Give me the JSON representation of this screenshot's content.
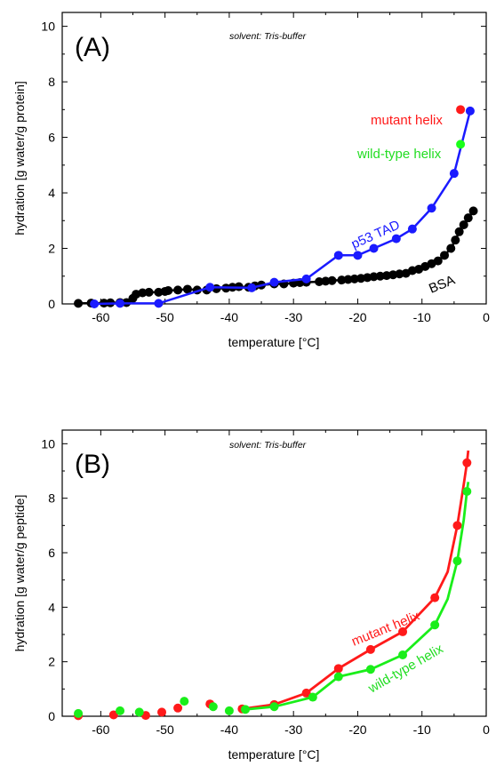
{
  "chart_data": [
    {
      "type": "line",
      "panel_label": "(A)",
      "annotation": "solvent: Tris-buffer",
      "xlabel": "temperature [°C]",
      "ylabel": "hydration [g water/g protein]",
      "xlim": [
        -66,
        0
      ],
      "ylim": [
        0,
        10.5
      ],
      "xticks": [
        -60,
        -50,
        -40,
        -30,
        -20,
        -10,
        0
      ],
      "yticks": [
        0,
        2,
        4,
        6,
        8,
        10
      ],
      "grid": false,
      "series": [
        {
          "name": "BSA",
          "color": "#000000",
          "line": true,
          "points": [
            [
              -63.5,
              0.02
            ],
            [
              -61.5,
              0.03
            ],
            [
              -59.5,
              0.03
            ],
            [
              -58.5,
              0.04
            ],
            [
              -57,
              0.05
            ],
            [
              -56,
              0.05
            ],
            [
              -55,
              0.2
            ],
            [
              -54.5,
              0.35
            ],
            [
              -53.5,
              0.4
            ],
            [
              -52.5,
              0.42
            ],
            [
              -51,
              0.42
            ],
            [
              -50,
              0.45
            ],
            [
              -49.5,
              0.48
            ],
            [
              -48,
              0.5
            ],
            [
              -46.5,
              0.53
            ],
            [
              -45,
              0.5
            ],
            [
              -43.5,
              0.5
            ],
            [
              -42,
              0.55
            ],
            [
              -40.5,
              0.57
            ],
            [
              -39.5,
              0.6
            ],
            [
              -38.5,
              0.62
            ],
            [
              -37,
              0.6
            ],
            [
              -36,
              0.65
            ],
            [
              -35,
              0.68
            ],
            [
              -33,
              0.72
            ],
            [
              -31.5,
              0.72
            ],
            [
              -30,
              0.75
            ],
            [
              -29,
              0.77
            ],
            [
              -28,
              0.78
            ],
            [
              -26,
              0.8
            ],
            [
              -25,
              0.82
            ],
            [
              -24,
              0.84
            ],
            [
              -22.5,
              0.86
            ],
            [
              -21.5,
              0.88
            ],
            [
              -20.5,
              0.9
            ],
            [
              -19.5,
              0.92
            ],
            [
              -18.5,
              0.95
            ],
            [
              -17.5,
              0.98
            ],
            [
              -16.5,
              1.0
            ],
            [
              -15.5,
              1.02
            ],
            [
              -14.5,
              1.05
            ],
            [
              -13.5,
              1.08
            ],
            [
              -12.5,
              1.1
            ],
            [
              -11.5,
              1.2
            ],
            [
              -10.5,
              1.25
            ],
            [
              -9.5,
              1.35
            ],
            [
              -8.5,
              1.45
            ],
            [
              -7.5,
              1.55
            ],
            [
              -6.5,
              1.75
            ],
            [
              -5.5,
              2.0
            ],
            [
              -4.8,
              2.3
            ],
            [
              -4.2,
              2.6
            ],
            [
              -3.5,
              2.85
            ],
            [
              -2.8,
              3.1
            ],
            [
              -2.0,
              3.35
            ]
          ]
        },
        {
          "name": "p53 TAD",
          "color": "#1a1aff",
          "line": true,
          "points": [
            [
              -61,
              0.0
            ],
            [
              -57,
              0.02
            ],
            [
              -51,
              0.02
            ],
            [
              -43,
              0.6
            ],
            [
              -36.5,
              0.58
            ],
            [
              -33,
              0.78
            ],
            [
              -28,
              0.9
            ],
            [
              -23,
              1.75
            ],
            [
              -20,
              1.75
            ],
            [
              -17.5,
              2.0
            ],
            [
              -14,
              2.35
            ],
            [
              -11.5,
              2.7
            ],
            [
              -8.5,
              3.45
            ],
            [
              -5,
              4.7
            ],
            [
              -2.5,
              6.95
            ]
          ]
        },
        {
          "name": "mutant helix",
          "color": "#ff1a1a",
          "line": false,
          "points": [
            [
              -4,
              7.0
            ]
          ]
        },
        {
          "name": "wild-type helix",
          "color": "#1aff1a",
          "line": false,
          "points": [
            [
              -4,
              5.75
            ]
          ]
        }
      ],
      "labels": [
        {
          "text": "mutant helix",
          "color": "#ff1a1a"
        },
        {
          "text": "wild-type helix",
          "color": "#22dd22"
        },
        {
          "text": "p53 TAD",
          "color": "#1a1aff"
        },
        {
          "text": "BSA",
          "color": "#000000"
        }
      ]
    },
    {
      "type": "line",
      "panel_label": "(B)",
      "annotation": "solvent: Tris-buffer",
      "xlabel": "temperature [°C]",
      "ylabel": "hydration [g water/g peptide]",
      "xlim": [
        -66,
        0
      ],
      "ylim": [
        0,
        10.5
      ],
      "xticks": [
        -60,
        -50,
        -40,
        -30,
        -20,
        -10,
        0
      ],
      "yticks": [
        0,
        2,
        4,
        6,
        8,
        10
      ],
      "grid": false,
      "series": [
        {
          "name": "mutant helix",
          "color": "#ff1a1a",
          "scatter": [
            [
              -63.5,
              0.02
            ],
            [
              -58,
              0.05
            ],
            [
              -53,
              0.03
            ],
            [
              -50.5,
              0.15
            ],
            [
              -48,
              0.3
            ],
            [
              -43,
              0.45
            ],
            [
              -38,
              0.27
            ],
            [
              -33,
              0.43
            ],
            [
              -28,
              0.85
            ],
            [
              -23,
              1.75
            ],
            [
              -18,
              2.45
            ],
            [
              -13,
              3.1
            ],
            [
              -8,
              4.35
            ],
            [
              -4.5,
              7.0
            ],
            [
              -3,
              9.3
            ]
          ],
          "line": [
            [
              -38,
              0.27
            ],
            [
              -33,
              0.43
            ],
            [
              -28,
              0.85
            ],
            [
              -23,
              1.75
            ],
            [
              -18,
              2.45
            ],
            [
              -13,
              3.1
            ],
            [
              -8,
              4.35
            ],
            [
              -6,
              5.3
            ],
            [
              -4.5,
              7.0
            ],
            [
              -3.5,
              8.5
            ],
            [
              -3,
              9.3
            ],
            [
              -2.8,
              9.75
            ]
          ]
        },
        {
          "name": "wild-type helix",
          "color": "#1aee1a",
          "scatter": [
            [
              -63.5,
              0.1
            ],
            [
              -57,
              0.2
            ],
            [
              -54,
              0.15
            ],
            [
              -47,
              0.55
            ],
            [
              -42.5,
              0.35
            ],
            [
              -40,
              0.2
            ],
            [
              -37.5,
              0.25
            ],
            [
              -33,
              0.35
            ],
            [
              -27,
              0.7
            ],
            [
              -23,
              1.45
            ],
            [
              -18,
              1.72
            ],
            [
              -13,
              2.25
            ],
            [
              -8,
              3.35
            ],
            [
              -4.5,
              5.7
            ],
            [
              -3,
              8.25
            ]
          ],
          "line": [
            [
              -37.5,
              0.25
            ],
            [
              -33,
              0.35
            ],
            [
              -27,
              0.7
            ],
            [
              -23,
              1.45
            ],
            [
              -18,
              1.72
            ],
            [
              -13,
              2.25
            ],
            [
              -8,
              3.35
            ],
            [
              -6,
              4.3
            ],
            [
              -4.5,
              5.7
            ],
            [
              -3.5,
              7.2
            ],
            [
              -3,
              8.25
            ],
            [
              -2.8,
              8.6
            ]
          ]
        }
      ],
      "labels": [
        {
          "text": "mutant helix",
          "color": "#ff1a1a"
        },
        {
          "text": "wild-type helix",
          "color": "#22dd22"
        }
      ]
    }
  ]
}
